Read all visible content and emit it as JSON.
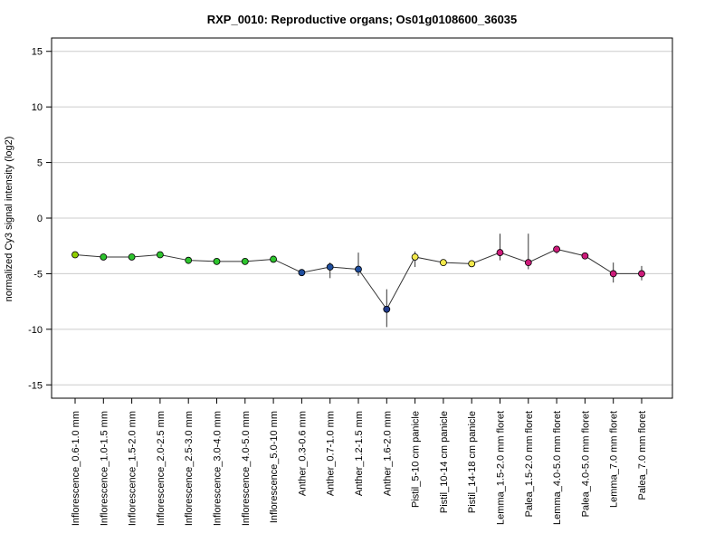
{
  "chart_data": {
    "type": "line",
    "title": "RXP_0010: Reproductive organs; Os01g0108600_36035",
    "xlabel": "",
    "ylabel": "normalized Cy3 signal intensity (log2)",
    "ylim": [
      -16.2,
      16.2
    ],
    "yticks": [
      -15,
      -10,
      -5,
      0,
      5,
      10,
      15
    ],
    "ytick_labels": [
      "-15",
      "-10",
      "-5",
      "0",
      "5",
      "10",
      "15"
    ],
    "grid": "horizontal",
    "categories": [
      "Inflorescence_0.6-1.0 mm",
      "Inflorescence_1.0-1.5 mm",
      "Inflorescence_1.5-2.0 mm",
      "Inflorescence_2.0-2.5 mm",
      "Inflorescence_2.5-3.0 mm",
      "Inflorescence_3.0-4.0 mm",
      "Inflorescence_4.0-5.0 mm",
      "Inflorescence_5.0-10 mm",
      "Anther_0.3-0.6 mm",
      "Anther_0.7-1.0 mm",
      "Anther_1.2-1.5 mm",
      "Anther_1.6-2.0 mm",
      "Pistil_5-10 cm panicle",
      "Pistil_10-14 cm panicle",
      "Pistil_14-18 cm panicle",
      "Lemma_1.5-2.0 mm floret",
      "Palea_1.5-2.0 mm floret",
      "Lemma_4.0-5.0 mm floret",
      "Palea_4.0-5.0 mm floret",
      "Lemma_7.0 mm floret",
      "Palea_7.0 mm floret"
    ],
    "values": [
      -3.3,
      -3.5,
      -3.5,
      -3.3,
      -3.8,
      -3.9,
      -3.9,
      -3.7,
      -4.9,
      -4.4,
      -4.6,
      -8.2,
      -3.5,
      -4.0,
      -4.1,
      -3.1,
      -4.0,
      -2.8,
      -3.4,
      -5.0,
      -5.0
    ],
    "err_low": [
      -3.4,
      -3.6,
      -3.6,
      -3.4,
      -3.9,
      -4.0,
      -4.0,
      -3.9,
      -5.0,
      -5.4,
      -5.2,
      -9.8,
      -4.4,
      -4.1,
      -4.2,
      -3.8,
      -4.6,
      -3.2,
      -3.6,
      -5.8,
      -5.6
    ],
    "err_high": [
      -3.2,
      -3.4,
      -3.4,
      -3.2,
      -3.7,
      -3.8,
      -3.8,
      -3.6,
      -4.8,
      -4.0,
      -3.1,
      -6.4,
      -3.0,
      -3.9,
      -4.0,
      -1.4,
      -1.4,
      -2.5,
      -3.2,
      -4.0,
      -4.3
    ],
    "point_colors": [
      "#8fce00",
      "#2ec42e",
      "#2ec42e",
      "#2ec42e",
      "#2ec42e",
      "#2ec42e",
      "#2ec42e",
      "#2ec42e",
      "#1f4e9e",
      "#1f4e9e",
      "#1f4e9e",
      "#1f3a8a",
      "#f3e94c",
      "#f3e94c",
      "#f3e94c",
      "#cc1b7a",
      "#cc1b7a",
      "#cc1b7a",
      "#cc1b7a",
      "#cc1b7a",
      "#cc1b7a"
    ],
    "line_color": "#333333",
    "grid_color": "#cccccc"
  }
}
